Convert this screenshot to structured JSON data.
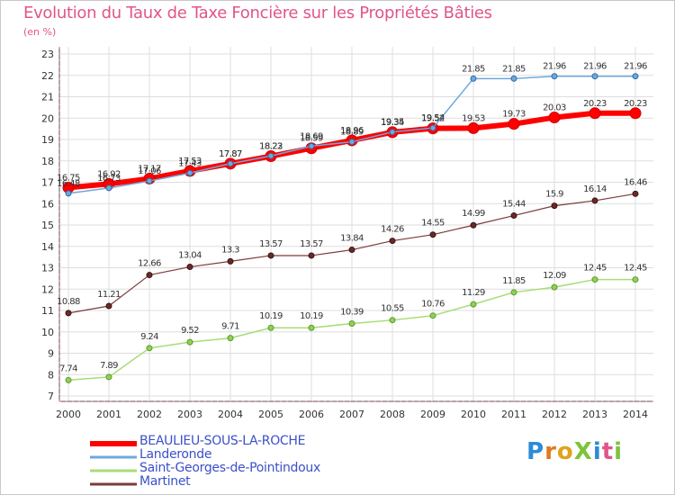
{
  "title": "Evolution du Taux de Taxe Foncière sur les Propriétés Bâties",
  "unit_label": "(en %)",
  "logo": {
    "text": "ProXiti",
    "letters": [
      "P",
      "r",
      "o",
      "X",
      "i",
      "t",
      "i"
    ],
    "colors": [
      "#2e8bd6",
      "#e07a1e",
      "#e0a21e",
      "#7cc43a",
      "#2e8bd6",
      "#e0558a",
      "#7cc43a"
    ]
  },
  "chart_data": {
    "type": "line",
    "title": "Evolution du Taux de Taxe Foncière sur les Propriétés Bâties",
    "ylabel": "(en %)",
    "xlabel": "",
    "ylim": [
      7,
      23
    ],
    "yticks": [
      "7",
      "8",
      "9",
      "10",
      "11",
      "12",
      "13",
      "14",
      "15",
      "16",
      "17",
      "18",
      "19",
      "20",
      "21",
      "22",
      "23"
    ],
    "x": [
      "2000",
      "2001",
      "2002",
      "2003",
      "2004",
      "2005",
      "2006",
      "2007",
      "2008",
      "2009",
      "2010",
      "2011",
      "2012",
      "2013",
      "2014"
    ],
    "grid": true,
    "legend_position": "bottom-left",
    "series": [
      {
        "name": "BEAULIEU-SOUS-LA-ROCHE",
        "color": "#ff0000",
        "values": [
          16.75,
          16.92,
          17.17,
          17.53,
          17.87,
          18.22,
          18.59,
          18.96,
          19.34,
          19.52,
          19.53,
          19.73,
          20.03,
          20.23,
          20.23
        ],
        "labels": [
          "16.75",
          "16.92",
          "17.17",
          "17.53",
          "17.87",
          "18.22",
          "18.59",
          "18.96",
          "19.34",
          "19.52",
          "19.53",
          "19.73",
          "20.03",
          "20.23",
          "20.23"
        ]
      },
      {
        "name": "Landeronde",
        "color": "#6fa8dc",
        "values": [
          16.48,
          16.73,
          17.06,
          17.43,
          17.87,
          18.23,
          18.69,
          18.89,
          19.35,
          19.54,
          21.85,
          21.85,
          21.96,
          21.96,
          21.96
        ],
        "labels": [
          "16.48",
          "16.73",
          "17.06",
          "17.43",
          "17.87",
          "18.23",
          "18.69",
          "18.89",
          "19.35",
          "19.54",
          "21.85",
          "21.85",
          "21.96",
          "21.96",
          "21.96"
        ]
      },
      {
        "name": "Saint-Georges-de-Pointindoux",
        "color": "#a8dc78",
        "values": [
          7.74,
          7.89,
          9.24,
          9.52,
          9.71,
          10.19,
          10.19,
          10.39,
          10.55,
          10.76,
          11.29,
          11.85,
          12.09,
          12.45,
          12.45
        ],
        "labels": [
          "7.74",
          "7.89",
          "9.24",
          "9.52",
          "9.71",
          "10.19",
          "10.19",
          "10.39",
          "10.55",
          "10.76",
          "11.29",
          "11.85",
          "12.09",
          "12.45",
          "12.45"
        ]
      },
      {
        "name": "Martinet",
        "color": "#7b3b3b",
        "values": [
          10.88,
          11.21,
          12.66,
          13.04,
          13.3,
          13.57,
          13.57,
          13.84,
          14.26,
          14.55,
          14.99,
          15.44,
          15.9,
          16.14,
          16.46
        ],
        "labels": [
          "10.88",
          "11.21",
          "12.66",
          "13.04",
          "13.3",
          "13.57",
          "13.57",
          "13.84",
          "14.26",
          "14.55",
          "14.99",
          "15.44",
          "15.9",
          "16.14",
          "16.46"
        ]
      }
    ]
  }
}
